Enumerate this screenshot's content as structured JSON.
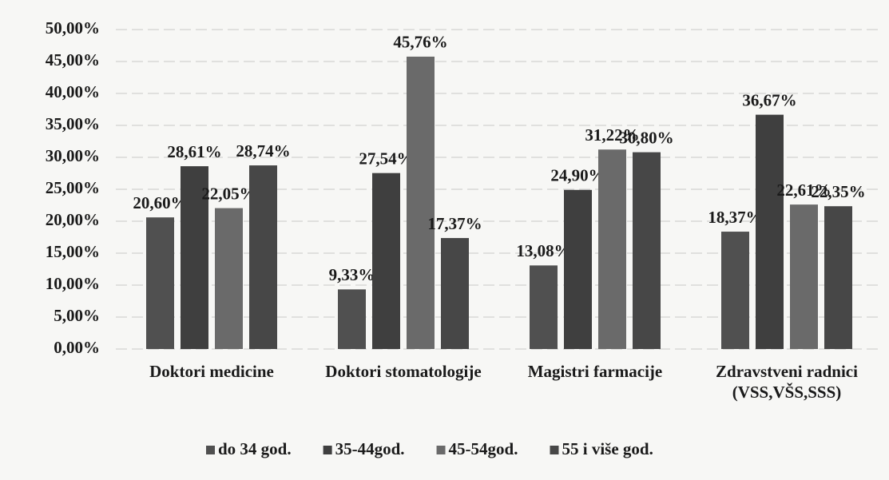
{
  "chart_data": {
    "type": "bar",
    "categories": [
      "Doktori medicine",
      "Doktori stomatologije",
      "Magistri farmacije",
      "Zdravstveni radnici (VSS,VŠS,SSS)"
    ],
    "series": [
      {
        "name": "do 34 god.",
        "color": "#505050",
        "values": [
          20.6,
          9.33,
          13.08,
          18.37
        ],
        "value_labels": [
          "20,60%",
          "9,33%",
          "13,08%",
          "18,37%"
        ]
      },
      {
        "name": "35-44god.",
        "color": "#3f3f3f",
        "values": [
          28.61,
          27.54,
          24.9,
          36.67
        ],
        "value_labels": [
          "28,61%",
          "27,54%",
          "24,90%",
          "36,67%"
        ]
      },
      {
        "name": "45-54god.",
        "color": "#6a6a6a",
        "values": [
          22.05,
          45.76,
          31.22,
          22.61
        ],
        "value_labels": [
          "22,05%",
          "45,76%",
          "31,22%",
          "22,61%"
        ]
      },
      {
        "name": "55 i više god.",
        "color": "#474747",
        "values": [
          28.74,
          17.37,
          30.8,
          22.35
        ],
        "value_labels": [
          "28,74%",
          "17,37%",
          "30,80%",
          "22,35%"
        ]
      }
    ],
    "ylim": [
      0,
      50
    ],
    "yticks": [
      {
        "value": 0,
        "label": "0,00%"
      },
      {
        "value": 5,
        "label": "5,00%"
      },
      {
        "value": 10,
        "label": "10,00%"
      },
      {
        "value": 15,
        "label": "15,00%"
      },
      {
        "value": 20,
        "label": "20,00%"
      },
      {
        "value": 25,
        "label": "25,00%"
      },
      {
        "value": 30,
        "label": "30,00%"
      },
      {
        "value": 35,
        "label": "35,00%"
      },
      {
        "value": 40,
        "label": "40,00%"
      },
      {
        "value": 45,
        "label": "45,00%"
      },
      {
        "value": 50,
        "label": "50,00%"
      }
    ],
    "grid": true,
    "legend": "bottom"
  }
}
